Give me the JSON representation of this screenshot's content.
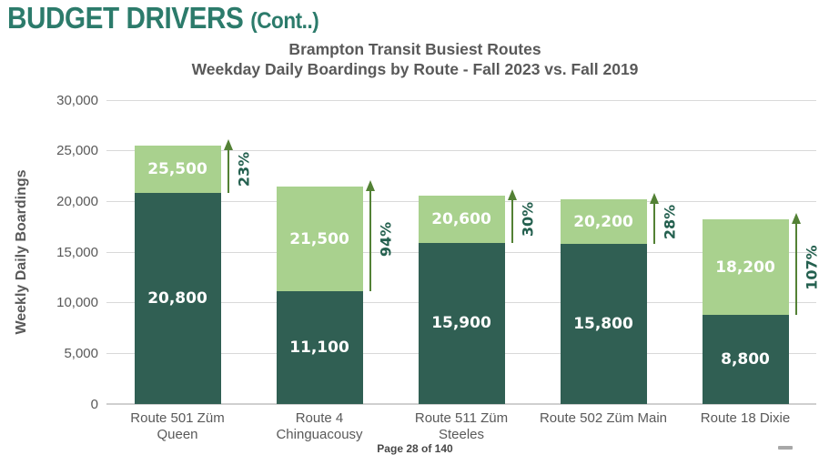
{
  "page": {
    "header_title": "BUDGET DRIVERS",
    "header_suffix": "(Cont..)",
    "page_number": "Page 28 of 140"
  },
  "chart_data": {
    "type": "bar",
    "stacked": true,
    "title_line1": "Brampton Transit Busiest Routes",
    "title_line2": "Weekday Daily Boardings by Route - Fall 2023 vs. Fall 2019",
    "ylabel": "Weekly Daily Boardings",
    "ylim": [
      0,
      30000
    ],
    "grid": "horizontal",
    "legend": "none",
    "yticks": [
      {
        "value": 0,
        "label": "0"
      },
      {
        "value": 5000,
        "label": "5,000"
      },
      {
        "value": 10000,
        "label": "10,000"
      },
      {
        "value": 15000,
        "label": "15,000"
      },
      {
        "value": 20000,
        "label": "20,000"
      },
      {
        "value": 25000,
        "label": "25,000"
      },
      {
        "value": 30000,
        "label": "30,000"
      }
    ],
    "bars": [
      {
        "category_lines": [
          "Route 501 Züm",
          "Queen"
        ],
        "fall2019_value": 20800,
        "fall2019_label": "20,800",
        "fall2023_total": 25500,
        "fall2023_label": "25,500",
        "pct_change_label": "23%"
      },
      {
        "category_lines": [
          "Route 4",
          "Chinguacousy"
        ],
        "fall2019_value": 11100,
        "fall2019_label": "11,100",
        "fall2023_total": 21500,
        "fall2023_label": "21,500",
        "pct_change_label": "94%"
      },
      {
        "category_lines": [
          "Route 511 Züm",
          "Steeles"
        ],
        "fall2019_value": 15900,
        "fall2019_label": "15,900",
        "fall2023_total": 20600,
        "fall2023_label": "20,600",
        "pct_change_label": "30%"
      },
      {
        "category_lines": [
          "Route 502 Züm Main"
        ],
        "fall2019_value": 15800,
        "fall2019_label": "15,800",
        "fall2023_total": 20200,
        "fall2023_label": "20,200",
        "pct_change_label": "28%"
      },
      {
        "category_lines": [
          "Route 18 Dixie"
        ],
        "fall2019_value": 8800,
        "fall2019_label": "8,800",
        "fall2023_total": 18200,
        "fall2023_label": "18,200",
        "pct_change_label": "107%"
      }
    ],
    "colors": {
      "fall2019_segment": "#305f53",
      "fall2023_growth_segment": "#a9d18e",
      "growth_arrow": "#538135",
      "pct_label": "#24604f",
      "header_accent": "#2c7b6b",
      "title_text": "#595959",
      "axis_text": "#595959",
      "gridline": "#d9d9d9",
      "baseline": "#cfcfcf"
    }
  }
}
